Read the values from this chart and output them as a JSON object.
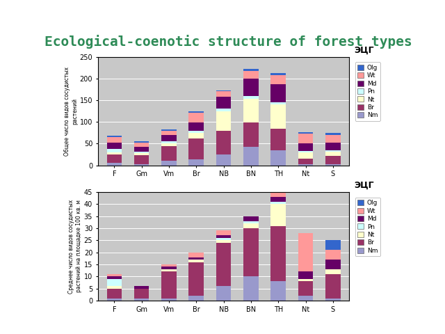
{
  "title": "Ecological-coenotic structure of forest types",
  "categories": [
    "F",
    "Gm",
    "Vm",
    "Br",
    "NB",
    "BN",
    "TH",
    "Nt",
    "S"
  ],
  "stack_order": [
    "Nm",
    "Br",
    "Nt",
    "Pn",
    "Md",
    "Wt",
    "Olg"
  ],
  "colors_map": {
    "Nm": "#9999CC",
    "Br": "#993366",
    "Nt": "#FFFFCC",
    "Pn": "#CCFFFF",
    "Md": "#660066",
    "Wt": "#FF9999",
    "Olg": "#3366CC"
  },
  "chart1": {
    "ylabel": "Общее число видов сосудистых\nрастений",
    "ylim": [
      0,
      250
    ],
    "yticks": [
      0,
      50,
      100,
      150,
      200,
      250
    ],
    "data": {
      "Nm": [
        5,
        3,
        10,
        14,
        25,
        42,
        35,
        3,
        3
      ],
      "Br": [
        20,
        20,
        35,
        48,
        55,
        57,
        50,
        12,
        18
      ],
      "Nt": [
        5,
        5,
        5,
        12,
        45,
        55,
        55,
        15,
        10
      ],
      "Pn": [
        8,
        3,
        5,
        5,
        5,
        5,
        5,
        3,
        3
      ],
      "Md": [
        15,
        12,
        15,
        20,
        28,
        40,
        42,
        18,
        18
      ],
      "Wt": [
        12,
        10,
        10,
        22,
        13,
        18,
        20,
        22,
        18
      ],
      "Olg": [
        3,
        2,
        2,
        3,
        2,
        5,
        6,
        3,
        5
      ]
    }
  },
  "chart2": {
    "ylabel": "Среднее число видов сосудистых\nрастений на площадке 100 кв. м",
    "ylim": [
      0,
      45
    ],
    "yticks": [
      0,
      5,
      10,
      15,
      20,
      25,
      30,
      35,
      40,
      45
    ],
    "data": {
      "Nm": [
        1,
        1,
        1,
        2,
        6,
        10,
        8,
        2,
        1
      ],
      "Br": [
        4,
        4,
        11,
        14,
        18,
        20,
        23,
        6,
        10
      ],
      "Nt": [
        1,
        0,
        1,
        1,
        1,
        2,
        9,
        1,
        2
      ],
      "Pn": [
        3,
        0,
        0,
        0,
        1,
        1,
        1,
        0,
        0
      ],
      "Md": [
        1,
        1,
        1,
        1,
        1,
        2,
        2,
        3,
        4
      ],
      "Wt": [
        1,
        0,
        1,
        2,
        2,
        0,
        4,
        16,
        4
      ],
      "Olg": [
        0,
        0,
        0,
        0,
        0,
        0,
        0,
        0,
        4
      ]
    }
  },
  "ecg_label": "ЭЦГ",
  "bar_width": 0.55,
  "slide_bg": "#FFFFFF",
  "plot_bg": "#C8C8C8",
  "sidebar_color": "#3A7A3A",
  "title_color": "#2E8B57",
  "underline_color": "#555555"
}
